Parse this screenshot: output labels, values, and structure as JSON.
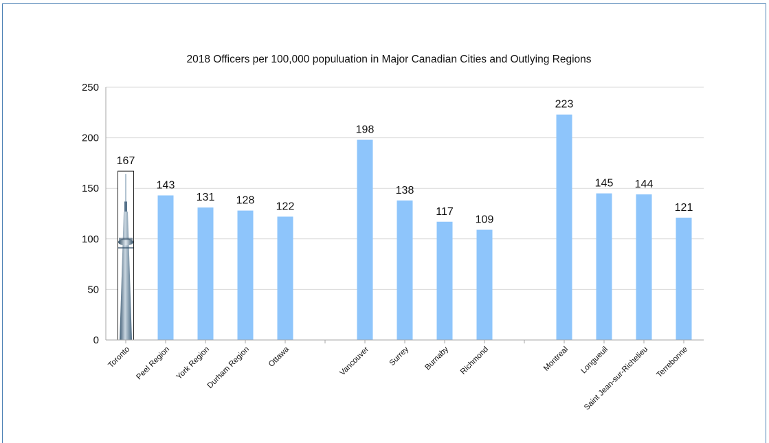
{
  "chart_data": {
    "type": "bar",
    "title": "2018 Officers per 100,000 populuation in Major Canadian Cities and Outlying Regions",
    "xlabel": "",
    "ylabel": "",
    "ylim": [
      0,
      250
    ],
    "yticks": [
      "0",
      "50",
      "100",
      "150",
      "200",
      "250"
    ],
    "grid": true,
    "legend": "none",
    "bar_color": "#8ec5fb",
    "highlight_image": "cn-tower-icon",
    "categories": [
      "Toronto",
      "Peel Region",
      "York Region",
      "Durham Region",
      "Ottawa",
      "",
      "Vancouver",
      "Surrey",
      "Burnaby",
      "Richmond",
      "",
      "Montreal",
      "Longueuil",
      "Saint Jean-sur-Richelieu",
      "Terrebonne"
    ],
    "values": [
      167,
      143,
      131,
      128,
      122,
      null,
      198,
      138,
      117,
      109,
      null,
      223,
      145,
      144,
      121
    ],
    "data_labels": [
      "167",
      "143",
      "131",
      "128",
      "122",
      "",
      "198",
      "138",
      "117",
      "109",
      "",
      "223",
      "145",
      "144",
      "121"
    ]
  }
}
